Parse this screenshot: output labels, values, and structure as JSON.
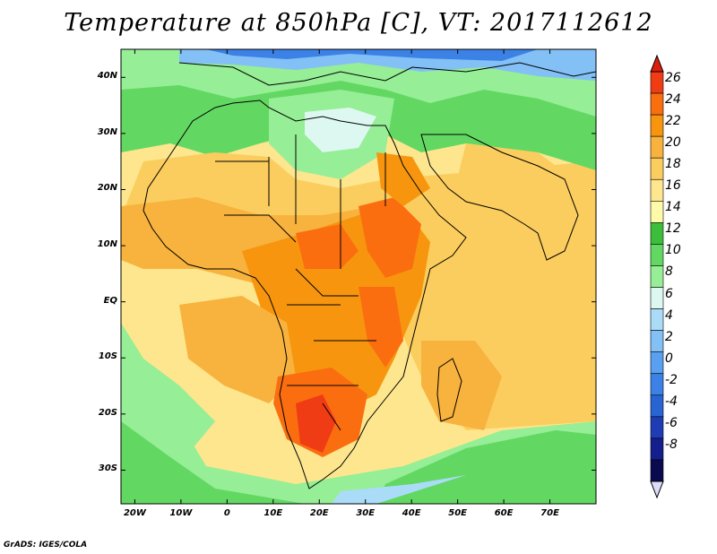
{
  "title": "Temperature at 850hPa [C], VT: 2017112612",
  "credit": "GrADS: IGES/COLA",
  "map": {
    "lon_range": [
      -23,
      80
    ],
    "lat_range": [
      -36,
      45
    ],
    "lat_ticks": [
      {
        "value": 40,
        "label": "40N"
      },
      {
        "value": 30,
        "label": "30N"
      },
      {
        "value": 20,
        "label": "20N"
      },
      {
        "value": 10,
        "label": "10N"
      },
      {
        "value": 0,
        "label": "EQ"
      },
      {
        "value": -10,
        "label": "10S"
      },
      {
        "value": -20,
        "label": "20S"
      },
      {
        "value": -30,
        "label": "30S"
      }
    ],
    "lon_ticks": [
      {
        "value": -20,
        "label": "20W"
      },
      {
        "value": -10,
        "label": "10W"
      },
      {
        "value": 0,
        "label": "0"
      },
      {
        "value": 10,
        "label": "10E"
      },
      {
        "value": 20,
        "label": "20E"
      },
      {
        "value": 30,
        "label": "30E"
      },
      {
        "value": 40,
        "label": "40E"
      },
      {
        "value": 50,
        "label": "50E"
      },
      {
        "value": 60,
        "label": "60E"
      },
      {
        "value": 70,
        "label": "70E"
      }
    ]
  },
  "colorbar": {
    "levels": [
      "26",
      "24",
      "22",
      "20",
      "18",
      "16",
      "14",
      "12",
      "10",
      "8",
      "6",
      "4",
      "2",
      "0",
      "-2",
      "-4",
      "-6",
      "-8"
    ],
    "colors": [
      "#f03c14",
      "#fa6e10",
      "#f7960e",
      "#f8b23e",
      "#fbcd5e",
      "#fde68e",
      "#fffaaa",
      "#3cbe3c",
      "#62d862",
      "#96ee96",
      "#dcf8f0",
      "#aadcf8",
      "#82c0f5",
      "#5aa0f0",
      "#3c82e6",
      "#2864d2",
      "#1e3cb4",
      "#141e8c",
      "#0a0a50"
    ]
  }
}
